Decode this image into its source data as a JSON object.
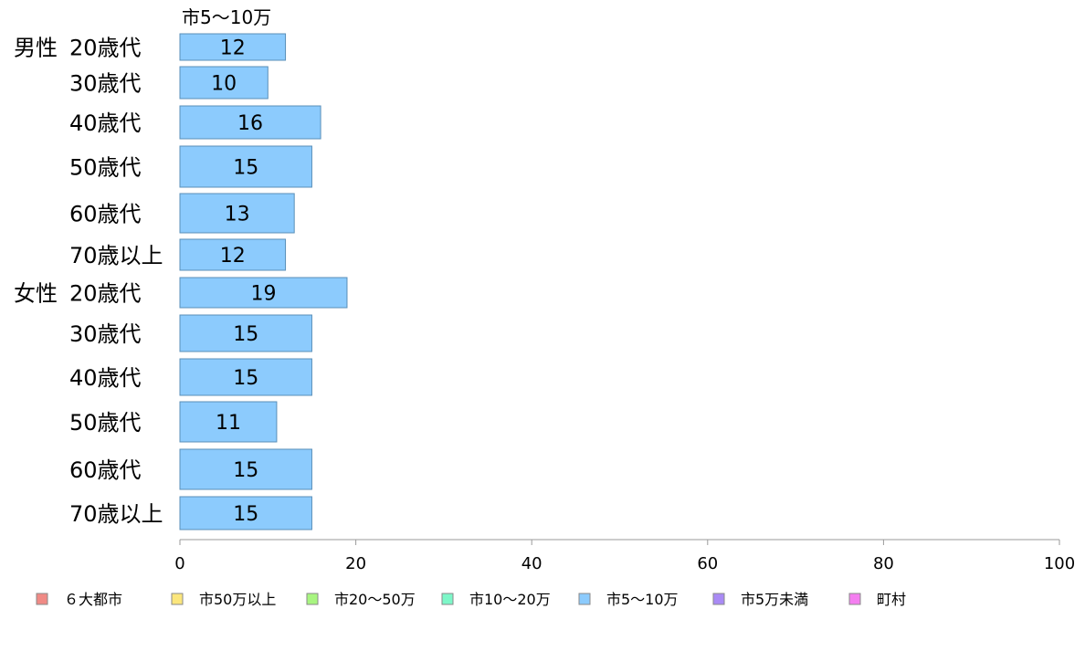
{
  "chart_data": {
    "type": "bar",
    "orientation": "horizontal",
    "column_header": "市5〜10万",
    "groups": [
      {
        "label": "男性",
        "start_index": 0
      },
      {
        "label": "女性",
        "start_index": 6
      }
    ],
    "categories": [
      "20歳代",
      "30歳代",
      "40歳代",
      "50歳代",
      "60歳代",
      "70歳以上",
      "20歳代",
      "30歳代",
      "40歳代",
      "50歳代",
      "60歳代",
      "70歳以上"
    ],
    "series": [
      {
        "name": "市5〜10万",
        "color": "#8ccbfd",
        "values": [
          12,
          10,
          16,
          15,
          13,
          12,
          19,
          15,
          15,
          11,
          15,
          15
        ]
      }
    ],
    "xlim": [
      0,
      100
    ],
    "xticks": [
      0,
      20,
      40,
      60,
      80,
      100
    ],
    "grid": false,
    "legend": {
      "position": "bottom",
      "items": [
        {
          "label": "６大都市",
          "color": "#f08a85"
        },
        {
          "label": "市50万以上",
          "color": "#fbe67c"
        },
        {
          "label": "市20〜50万",
          "color": "#a8f580"
        },
        {
          "label": "市10〜20万",
          "color": "#7df7c8"
        },
        {
          "label": "市5〜10万",
          "color": "#8ccbfd"
        },
        {
          "label": "市5万未満",
          "color": "#a98af5"
        },
        {
          "label": "町村",
          "color": "#f47ef0"
        }
      ]
    }
  }
}
